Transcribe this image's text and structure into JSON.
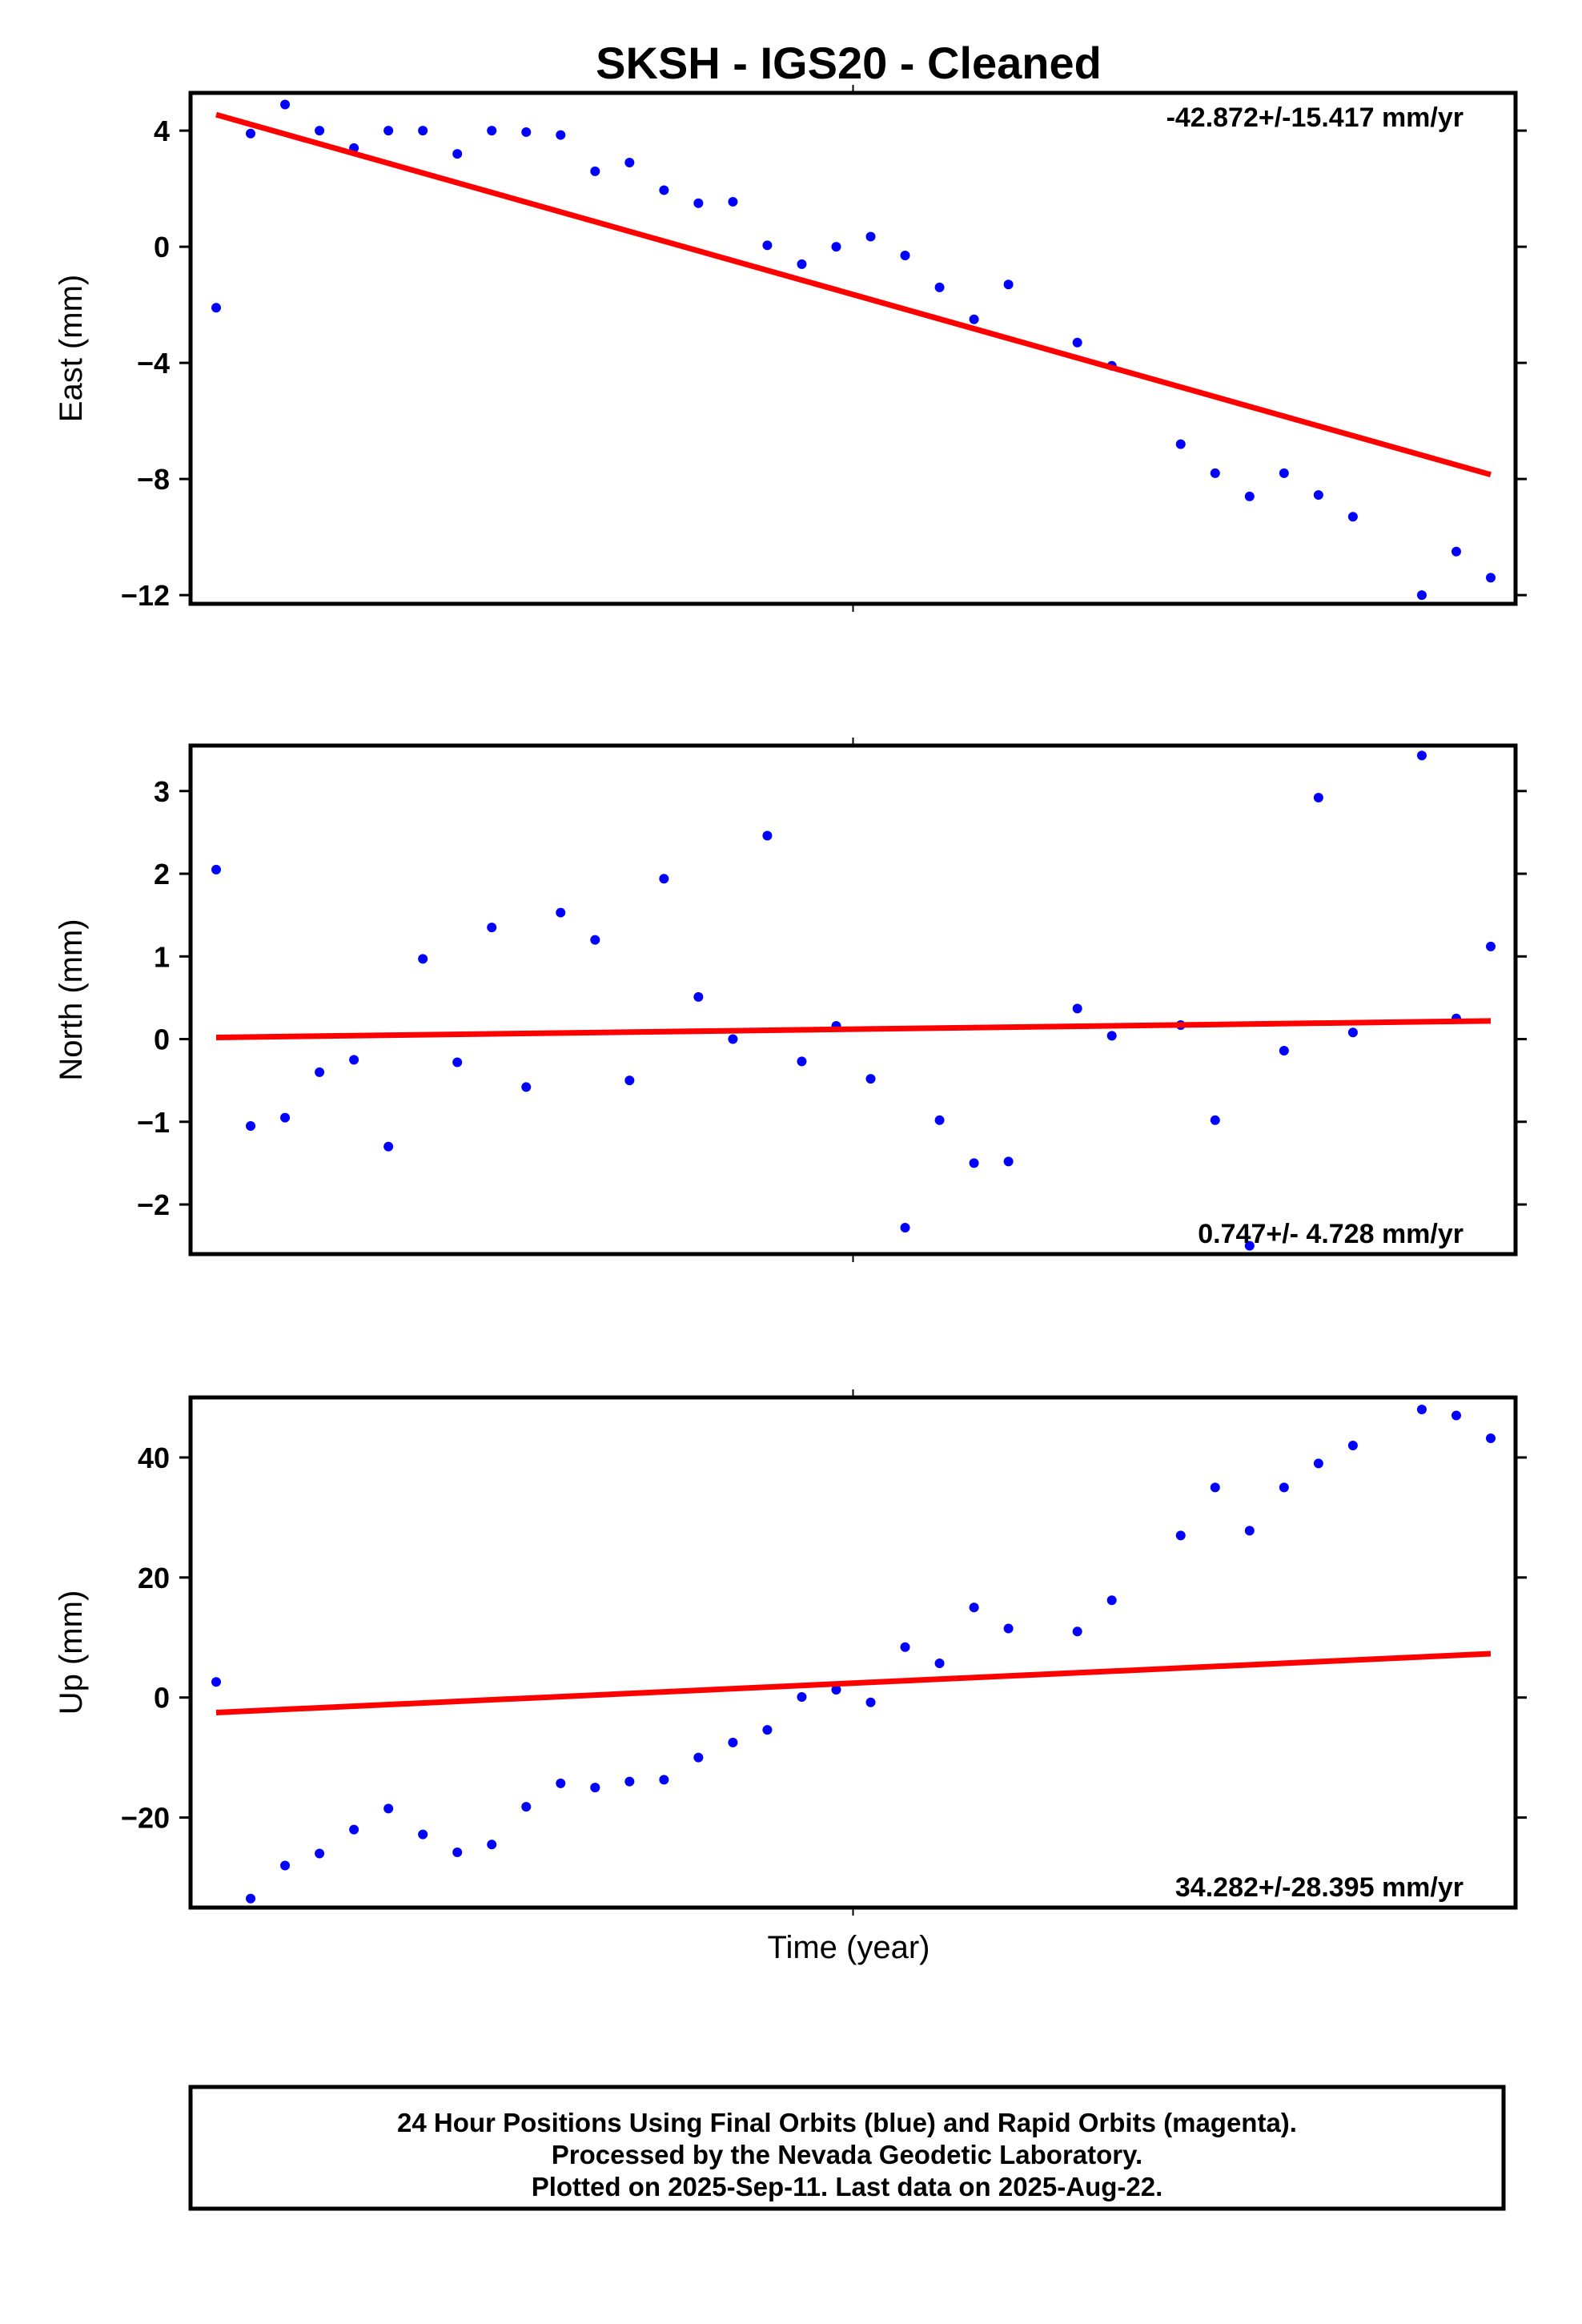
{
  "title": "SKSH  - IGS20 - Cleaned",
  "colors": {
    "points": "#0000ff",
    "trend": "#ff0000",
    "frame": "#000000"
  },
  "xlabel": "Time (year)",
  "footer": {
    "line1": "24 Hour Positions Using Final Orbits (blue) and Rapid Orbits (magenta).",
    "line2": "Processed by the Nevada Geodetic Laboratory.",
    "line3": "Plotted on 2025-Sep-11. Last data on 2025-Aug-22."
  },
  "chart_data": [
    {
      "type": "scatter",
      "ylabel": "East (mm)",
      "rate_label": "-42.872+/-15.417 mm/yr",
      "rate_position": "top-right",
      "ylim": [
        -12.3,
        5.3
      ],
      "yticks": [
        4,
        0,
        -4,
        -8,
        -12
      ],
      "ytick_labels": [
        "4",
        "0",
        "−4",
        "−8",
        "−12"
      ],
      "trend": {
        "y_start": 4.55,
        "y_end": -7.85
      },
      "points": [
        -2.1,
        3.9,
        4.9,
        4.0,
        3.4,
        4.0,
        4.0,
        3.2,
        4.0,
        3.95,
        3.85,
        2.6,
        2.9,
        1.95,
        1.5,
        1.55,
        0.05,
        -0.6,
        0.0,
        0.35,
        -0.3,
        -1.4,
        -2.5,
        -1.3,
        null,
        -3.3,
        -4.1,
        null,
        -6.8,
        -7.8,
        -8.6,
        -7.8,
        -8.55,
        -9.3,
        null,
        -12.0,
        -10.5,
        -11.4
      ]
    },
    {
      "type": "scatter",
      "ylabel": "North (mm)",
      "rate_label": "0.747+/- 4.728 mm/yr",
      "rate_position": "bottom-right",
      "ylim": [
        -2.6,
        3.55
      ],
      "yticks": [
        3,
        2,
        1,
        0,
        -1,
        -2
      ],
      "ytick_labels": [
        "3",
        "2",
        "1",
        "0",
        "−1",
        "−2"
      ],
      "trend": {
        "y_start": 0.02,
        "y_end": 0.22
      },
      "points": [
        2.05,
        -1.05,
        -0.95,
        -0.4,
        -0.25,
        -1.3,
        0.97,
        -0.28,
        1.35,
        -0.58,
        1.53,
        1.2,
        -0.5,
        1.94,
        0.51,
        0.0,
        2.46,
        -0.27,
        0.16,
        -0.48,
        -2.28,
        -0.98,
        -1.5,
        -1.48,
        null,
        0.37,
        0.04,
        null,
        0.17,
        -0.98,
        -2.5,
        -0.14,
        2.92,
        0.08,
        null,
        3.43,
        0.25,
        1.12
      ]
    },
    {
      "type": "scatter",
      "ylabel": "Up (mm)",
      "rate_label": "34.282+/-28.395 mm/yr",
      "rate_position": "bottom-right",
      "ylim": [
        -35,
        50
      ],
      "yticks": [
        40,
        20,
        0,
        -20
      ],
      "ytick_labels": [
        "40",
        "20",
        "0",
        "−20"
      ],
      "trend": {
        "y_start": -2.5,
        "y_end": 7.3
      },
      "points": [
        2.6,
        -33.5,
        -28.0,
        -26.0,
        -22.0,
        -18.5,
        -22.8,
        -25.8,
        -24.5,
        -18.2,
        -14.3,
        -15.0,
        -14.0,
        -13.7,
        -10.0,
        -7.5,
        -5.4,
        0.1,
        1.3,
        -0.8,
        8.4,
        5.7,
        15.0,
        11.5,
        null,
        11.0,
        16.2,
        null,
        27.0,
        35.0,
        27.8,
        35.0,
        39.0,
        42.0,
        null,
        48.0,
        47.0,
        43.2
      ]
    }
  ]
}
